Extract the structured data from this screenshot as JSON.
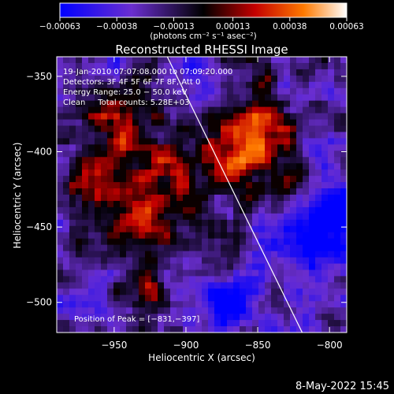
{
  "chart_data": {
    "type": "heatmap",
    "title": "Reconstructed RHESSI Image",
    "xlabel": "Heliocentric X (arcsec)",
    "ylabel": "Heliocentric Y (arcsec)",
    "xlim": [
      -990,
      -788
    ],
    "ylim": [
      -520,
      -337
    ],
    "x_ticks": [
      -950,
      -900,
      -850,
      -800
    ],
    "x_tick_labels": [
      "−950",
      "−900",
      "−850",
      "−800"
    ],
    "y_ticks": [
      -350,
      -400,
      -450,
      -500
    ],
    "y_tick_labels": [
      "−350",
      "−400",
      "−450",
      "−500"
    ],
    "colorbar": {
      "min": -0.00063,
      "max": 0.00063,
      "ticks": [
        -0.00063,
        -0.00038,
        -0.00013,
        0.00013,
        0.00038,
        0.00063
      ],
      "tick_labels": [
        "−0.00063",
        "−0.00038",
        "−0.00013",
        "0.00013",
        "0.00038",
        "0.00063"
      ],
      "unit_label": "(photons cm⁻² s⁻¹ asec⁻²)",
      "colors": [
        "#0000ff",
        "#6a2ed0",
        "#000000",
        "#c40000",
        "#ff7a00",
        "#ffffff"
      ]
    },
    "annotations": {
      "time_range": "19-Jan-2010 07:07:08.000 to 07:09:20.000",
      "detectors": "Detectors: 3F 4F 5F 6F 7F 8F, Att 0",
      "energy": "Energy Range: 25.0 − 50.0 keV",
      "clean_line": "Clean     Total counts: 5.28E+03",
      "peak": "Position of Peak = [−831,−397]"
    },
    "peak_position": [
      -831,
      -397
    ],
    "limb_line": [
      [
        -913,
        -337
      ],
      [
        -819,
        -520
      ]
    ],
    "bright_sources": [
      {
        "x": -855,
        "y": -395,
        "amp": 1.0,
        "sigma": 20
      },
      {
        "x": -930,
        "y": -443,
        "amp": 0.85,
        "sigma": 16
      },
      {
        "x": -948,
        "y": -385,
        "amp": 0.7,
        "sigma": 17
      },
      {
        "x": -905,
        "y": -410,
        "amp": 0.6,
        "sigma": 14
      },
      {
        "x": -968,
        "y": -420,
        "amp": 0.5,
        "sigma": 13
      },
      {
        "x": -930,
        "y": -490,
        "amp": 0.45,
        "sigma": 12
      },
      {
        "x": -880,
        "y": -462,
        "amp": 0.4,
        "sigma": 13
      },
      {
        "x": -825,
        "y": -430,
        "amp": 0.3,
        "sigma": 12
      }
    ],
    "dim_regions": [
      {
        "x": -810,
        "y": -455,
        "amp": -0.8,
        "sigma": 22
      },
      {
        "x": -870,
        "y": -505,
        "amp": -0.6,
        "sigma": 18
      },
      {
        "x": -975,
        "y": -500,
        "amp": -0.4,
        "sigma": 14
      },
      {
        "x": -885,
        "y": -360,
        "amp": -0.45,
        "sigma": 14
      }
    ]
  },
  "timestamp": "8-May-2022 15:45"
}
